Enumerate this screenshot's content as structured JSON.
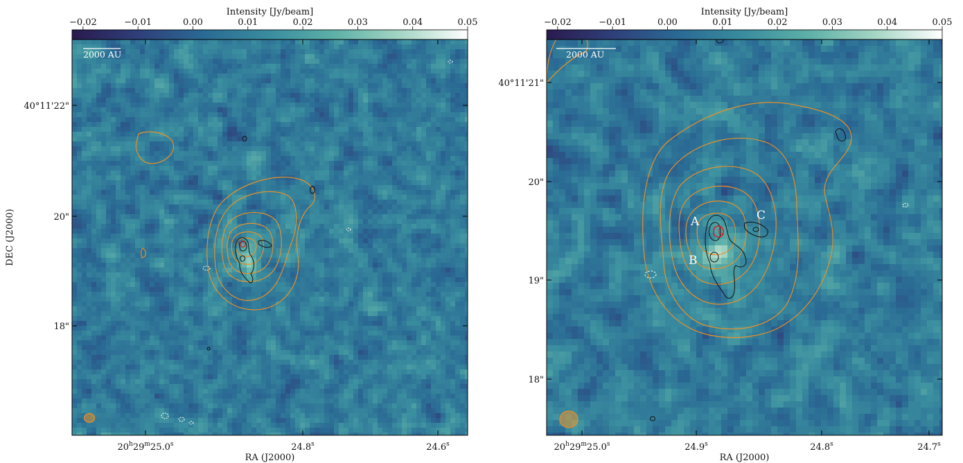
{
  "chart_data": [
    {
      "type": "heatmap",
      "colorbar": {
        "label": "Intensity [Jy/beam]",
        "ticks": [
          "−0.02",
          "−0.01",
          "0.00",
          "0.01",
          "0.02",
          "0.03",
          "0.04",
          "0.05"
        ],
        "tick_values": [
          -0.02,
          -0.01,
          0.0,
          0.01,
          0.02,
          0.03,
          0.04,
          0.05
        ],
        "range": [
          -0.022,
          0.05
        ],
        "colormap": [
          "#2a1a4e",
          "#2f3f7a",
          "#2a6a94",
          "#3a8d9f",
          "#5fb1a8",
          "#a6d6c5",
          "#ffffff"
        ]
      },
      "xlabel": "RA (J2000)",
      "ylabel": "DEC (J2000)",
      "xticks": [
        {
          "h": "20",
          "m": "29",
          "s": "25.0",
          "major": true
        },
        {
          "s": "24.8"
        },
        {
          "s": "24.6"
        }
      ],
      "yticks": [
        "40°11'22\"",
        "20\"",
        "18\""
      ],
      "scalebar": "2000 AU",
      "labels": [],
      "contours": {
        "orange": "#e8902a",
        "black": "#111111",
        "red": "#d42020",
        "white": "#ffffff"
      }
    },
    {
      "type": "heatmap",
      "colorbar": {
        "label": "Intensity [Jy/beam]",
        "ticks": [
          "−0.02",
          "−0.01",
          "0.00",
          "0.01",
          "0.02",
          "0.03",
          "0.04",
          "0.05"
        ],
        "tick_values": [
          -0.02,
          -0.01,
          0.0,
          0.01,
          0.02,
          0.03,
          0.04,
          0.05
        ],
        "range": [
          -0.022,
          0.05
        ],
        "colormap": [
          "#2a1a4e",
          "#2f3f7a",
          "#2a6a94",
          "#3a8d9f",
          "#5fb1a8",
          "#a6d6c5",
          "#ffffff"
        ]
      },
      "xlabel": "RA (J2000)",
      "ylabel": "",
      "xticks": [
        {
          "h": "20",
          "m": "29",
          "s": "25.0",
          "major": true
        },
        {
          "s": "24.9"
        },
        {
          "s": "24.8"
        },
        {
          "s": "24.7"
        }
      ],
      "yticks": [
        "40°11'21\"",
        "20\"",
        "19\"",
        "18\""
      ],
      "scalebar": "2000 AU",
      "labels": [
        "A",
        "B",
        "C"
      ],
      "contours": {
        "orange": "#e8902a",
        "black": "#111111",
        "red": "#d42020",
        "white": "#ffffff"
      }
    }
  ]
}
